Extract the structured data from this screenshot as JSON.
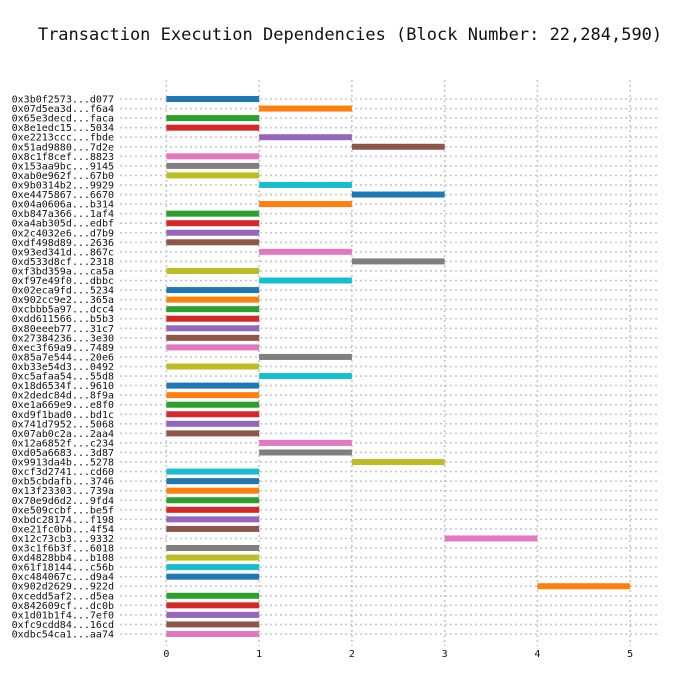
{
  "chart_data": {
    "type": "bar",
    "orientation": "horizontal-gantt",
    "title": "Transaction Execution Dependencies (Block Number: 22,284,590)",
    "xlabel": "",
    "ylabel": "",
    "xlim": [
      -0.5,
      5.3
    ],
    "xticks": [
      0,
      1,
      2,
      3,
      4,
      5
    ],
    "grid": true,
    "palette": [
      "#1f77b4",
      "#ff7f0e",
      "#2ca02c",
      "#d62728",
      "#9467bd",
      "#8c564b",
      "#e377c2",
      "#7f7f7f",
      "#bcbd22",
      "#17becf"
    ],
    "transactions": [
      {
        "label": "0x3b0f2573...d077",
        "start": 0,
        "end": 1
      },
      {
        "label": "0x07d5ea3d...f6a4",
        "start": 1,
        "end": 2
      },
      {
        "label": "0x65e3decd...faca",
        "start": 0,
        "end": 1
      },
      {
        "label": "0x8e1edc15...5034",
        "start": 0,
        "end": 1
      },
      {
        "label": "0xe2213ccc...fbde",
        "start": 1,
        "end": 2
      },
      {
        "label": "0x51ad9880...7d2e",
        "start": 2,
        "end": 3
      },
      {
        "label": "0x8c1f8cef...8823",
        "start": 0,
        "end": 1
      },
      {
        "label": "0x153aa9bc...9145",
        "start": 0,
        "end": 1
      },
      {
        "label": "0xab0e962f...67b0",
        "start": 0,
        "end": 1
      },
      {
        "label": "0x9b0314b2...9929",
        "start": 1,
        "end": 2
      },
      {
        "label": "0xe4475867...6670",
        "start": 2,
        "end": 3
      },
      {
        "label": "0x04a0606a...b314",
        "start": 1,
        "end": 2
      },
      {
        "label": "0xb847a366...1af4",
        "start": 0,
        "end": 1
      },
      {
        "label": "0xa4ab305d...edbf",
        "start": 0,
        "end": 1
      },
      {
        "label": "0x2c4032e6...d7b9",
        "start": 0,
        "end": 1
      },
      {
        "label": "0xdf498d89...2636",
        "start": 0,
        "end": 1
      },
      {
        "label": "0x93ed341d...867c",
        "start": 1,
        "end": 2
      },
      {
        "label": "0xd533d8cf...2318",
        "start": 2,
        "end": 3
      },
      {
        "label": "0xf3bd359a...ca5a",
        "start": 0,
        "end": 1
      },
      {
        "label": "0xf97e49f0...dbbc",
        "start": 1,
        "end": 2
      },
      {
        "label": "0x02eca9fd...5234",
        "start": 0,
        "end": 1
      },
      {
        "label": "0x902cc9e2...365a",
        "start": 0,
        "end": 1
      },
      {
        "label": "0xcbbb5a97...dcc4",
        "start": 0,
        "end": 1
      },
      {
        "label": "0xdd611566...b5b3",
        "start": 0,
        "end": 1
      },
      {
        "label": "0x80eeeb77...31c7",
        "start": 0,
        "end": 1
      },
      {
        "label": "0x27384236...3e30",
        "start": 0,
        "end": 1
      },
      {
        "label": "0xec3f69a9...7489",
        "start": 0,
        "end": 1
      },
      {
        "label": "0x85a7e544...20e6",
        "start": 1,
        "end": 2
      },
      {
        "label": "0xb33e54d3...0492",
        "start": 0,
        "end": 1
      },
      {
        "label": "0xc5afaa54...55d8",
        "start": 1,
        "end": 2
      },
      {
        "label": "0x18d6534f...9610",
        "start": 0,
        "end": 1
      },
      {
        "label": "0x2dedc84d...8f9a",
        "start": 0,
        "end": 1
      },
      {
        "label": "0xe1a669e9...e8f0",
        "start": 0,
        "end": 1
      },
      {
        "label": "0xd9f1bad0...bd1c",
        "start": 0,
        "end": 1
      },
      {
        "label": "0x741d7952...5068",
        "start": 0,
        "end": 1
      },
      {
        "label": "0x07ab0c2a...2aa4",
        "start": 0,
        "end": 1
      },
      {
        "label": "0x12a6852f...c234",
        "start": 1,
        "end": 2
      },
      {
        "label": "0xd05a6683...3d87",
        "start": 1,
        "end": 2
      },
      {
        "label": "0x9913da4b...5278",
        "start": 2,
        "end": 3
      },
      {
        "label": "0xcf3d2741...cd60",
        "start": 0,
        "end": 1
      },
      {
        "label": "0xb5cbdafb...3746",
        "start": 0,
        "end": 1
      },
      {
        "label": "0x13f23303...739a",
        "start": 0,
        "end": 1
      },
      {
        "label": "0x70e9d6d2...9fd4",
        "start": 0,
        "end": 1
      },
      {
        "label": "0xe509ccbf...be5f",
        "start": 0,
        "end": 1
      },
      {
        "label": "0xbdc28174...f198",
        "start": 0,
        "end": 1
      },
      {
        "label": "0xe21fc0bb...4f54",
        "start": 0,
        "end": 1
      },
      {
        "label": "0x12c73cb3...9332",
        "start": 3,
        "end": 4
      },
      {
        "label": "0x3c1f6b3f...6018",
        "start": 0,
        "end": 1
      },
      {
        "label": "0xd4828bb4...b108",
        "start": 0,
        "end": 1
      },
      {
        "label": "0x61f18144...c56b",
        "start": 0,
        "end": 1
      },
      {
        "label": "0xc484067c...d9a4",
        "start": 0,
        "end": 1
      },
      {
        "label": "0x902d2629...922d",
        "start": 4,
        "end": 5
      },
      {
        "label": "0xcedd5af2...d5ea",
        "start": 0,
        "end": 1
      },
      {
        "label": "0x842609cf...dc0b",
        "start": 0,
        "end": 1
      },
      {
        "label": "0x1d01b1f4...7ef0",
        "start": 0,
        "end": 1
      },
      {
        "label": "0xfc9cdd84...16cd",
        "start": 0,
        "end": 1
      },
      {
        "label": "0xdbc54ca1...aa74",
        "start": 0,
        "end": 1
      }
    ]
  }
}
